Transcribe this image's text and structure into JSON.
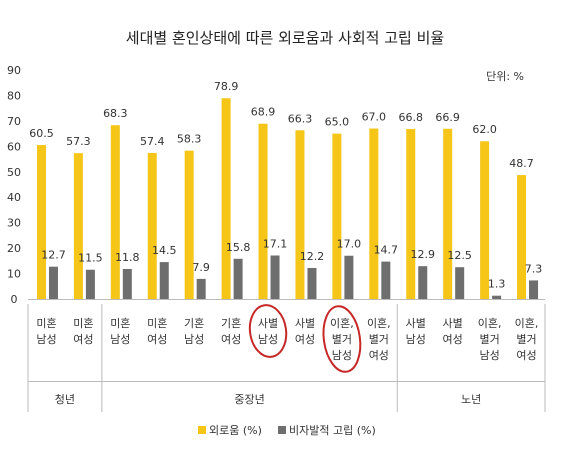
{
  "chart_data": {
    "type": "bar",
    "title": "세대별 혼인상태에 따른 외로움과 사회적 고립 비율",
    "unit_label": "단위: %",
    "ylim": [
      0,
      90
    ],
    "yticks": [
      0,
      10,
      20,
      30,
      40,
      50,
      60,
      70,
      80,
      90
    ],
    "grid": false,
    "legend_position": "bottom",
    "categories": [
      [
        "미혼",
        "남성"
      ],
      [
        "미혼",
        "여성"
      ],
      [
        "미혼",
        "남성"
      ],
      [
        "미혼",
        "여성"
      ],
      [
        "기혼",
        "남성"
      ],
      [
        "기혼",
        "여성"
      ],
      [
        "사별",
        "남성"
      ],
      [
        "사별",
        "여성"
      ],
      [
        "이혼,",
        "별거",
        "남성"
      ],
      [
        "이혼,",
        "별거",
        "여성"
      ],
      [
        "사별",
        "남성"
      ],
      [
        "사별",
        "여성"
      ],
      [
        "이혼,",
        "별거",
        "남성"
      ],
      [
        "이혼,",
        "별거",
        "여성"
      ]
    ],
    "groups": [
      {
        "name": "청년",
        "start": 0,
        "end": 1
      },
      {
        "name": "중장년",
        "start": 2,
        "end": 9
      },
      {
        "name": "노년",
        "start": 10,
        "end": 13
      }
    ],
    "series": [
      {
        "name": "외로움 (%)",
        "color": "#F5C518",
        "values": [
          60.5,
          57.3,
          68.3,
          57.4,
          58.3,
          78.9,
          68.9,
          66.3,
          65.0,
          67.0,
          66.8,
          66.9,
          62.0,
          48.7
        ]
      },
      {
        "name": "비자발적 고립 (%)",
        "color": "#6E6E6E",
        "values": [
          12.7,
          11.5,
          11.8,
          14.5,
          7.9,
          15.8,
          17.1,
          12.2,
          17.0,
          14.7,
          12.9,
          12.5,
          1.3,
          7.3
        ]
      }
    ],
    "annotations": [
      {
        "type": "circle",
        "color": "#C62828",
        "category_index": 6
      },
      {
        "type": "circle",
        "color": "#C62828",
        "category_index": 8
      }
    ]
  }
}
